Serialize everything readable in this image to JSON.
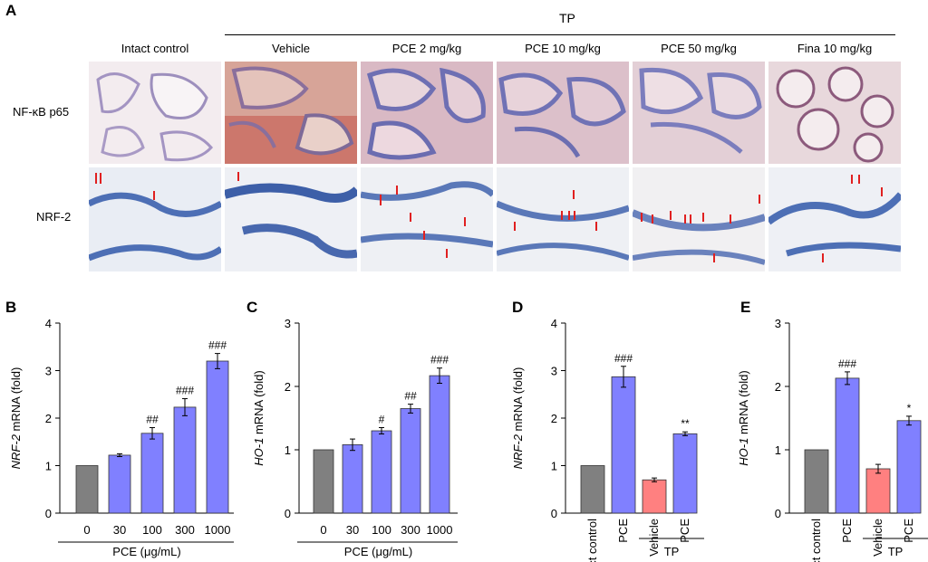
{
  "panelA": {
    "letter": "A",
    "group_label": "TP",
    "columns": [
      "Intact control",
      "Vehicle",
      "PCE 2 mg/kg",
      "PCE 10 mg/kg",
      "PCE 50 mg/kg",
      "Fina 10 mg/kg"
    ],
    "rows": [
      "NF-κB p65",
      "NRF-2"
    ]
  },
  "chart_data": [
    {
      "panel": "B",
      "type": "bar",
      "categories": [
        "0",
        "30",
        "100",
        "300",
        "1000"
      ],
      "values": [
        1.0,
        1.22,
        1.68,
        2.23,
        3.2
      ],
      "errors": [
        0.0,
        0.03,
        0.12,
        0.18,
        0.16
      ],
      "significance": [
        "",
        "",
        "##",
        "###",
        "###"
      ],
      "colors": [
        "#808080",
        "#8080ff",
        "#8080ff",
        "#8080ff",
        "#8080ff"
      ],
      "ylabel_italic": "NRF-2",
      "ylabel_rest": " mRNA (fold)",
      "xlabel": "PCE (μg/mL)",
      "ylim": [
        0,
        4
      ],
      "yticks": [
        "0",
        "1",
        "2",
        "3",
        "4"
      ]
    },
    {
      "panel": "C",
      "type": "bar",
      "categories": [
        "0",
        "30",
        "100",
        "300",
        "1000"
      ],
      "values": [
        1.0,
        1.08,
        1.3,
        1.65,
        2.17
      ],
      "errors": [
        0.0,
        0.09,
        0.05,
        0.07,
        0.12
      ],
      "significance": [
        "",
        "",
        "#",
        "##",
        "###"
      ],
      "colors": [
        "#808080",
        "#8080ff",
        "#8080ff",
        "#8080ff",
        "#8080ff"
      ],
      "ylabel_italic": "HO-1",
      "ylabel_rest": " mRNA (fold)",
      "xlabel": "PCE (μg/mL)",
      "ylim": [
        0,
        3
      ],
      "yticks": [
        "0",
        "1",
        "2",
        "3"
      ]
    },
    {
      "panel": "D",
      "type": "bar",
      "categories": [
        "Intact control",
        "PCE",
        "Vehicle",
        "PCE"
      ],
      "values": [
        1.0,
        2.87,
        0.7,
        1.67
      ],
      "errors": [
        0.0,
        0.22,
        0.04,
        0.04
      ],
      "significance": [
        "",
        "###",
        "",
        "**"
      ],
      "colors": [
        "#808080",
        "#8080ff",
        "#ff8080",
        "#8080ff"
      ],
      "ylabel_italic": "NRF-2",
      "ylabel_rest": " mRNA (fold)",
      "group_label": "TP",
      "ylim": [
        0,
        4
      ],
      "yticks": [
        "0",
        "1",
        "2",
        "3",
        "4"
      ]
    },
    {
      "panel": "E",
      "type": "bar",
      "categories": [
        "Intact control",
        "PCE",
        "Vehicle",
        "PCE"
      ],
      "values": [
        1.0,
        2.13,
        0.7,
        1.46
      ],
      "errors": [
        0.0,
        0.1,
        0.07,
        0.07
      ],
      "significance": [
        "",
        "###",
        "",
        "*"
      ],
      "colors": [
        "#808080",
        "#8080ff",
        "#ff8080",
        "#8080ff"
      ],
      "ylabel_italic": "HO-1",
      "ylabel_rest": " mRNA (fold)",
      "group_label": "TP",
      "ylim": [
        0,
        3
      ],
      "yticks": [
        "0",
        "1",
        "2",
        "3"
      ]
    }
  ]
}
